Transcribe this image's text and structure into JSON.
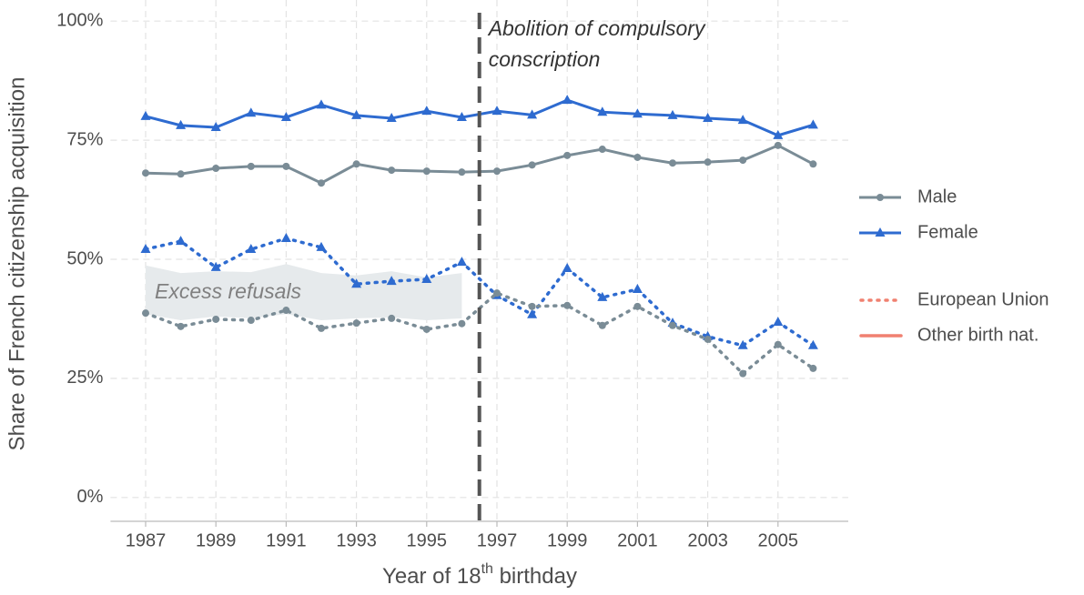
{
  "chart_data": {
    "type": "line",
    "xlabel": {
      "before": "Year of 18",
      "sup": "th",
      "after": " birthday"
    },
    "ylabel": "Share of French citizenship acquisition",
    "x": [
      1987,
      1988,
      1989,
      1990,
      1991,
      1992,
      1993,
      1994,
      1995,
      1996,
      1997,
      1998,
      1999,
      2000,
      2001,
      2002,
      2003,
      2004,
      2005,
      2006
    ],
    "xlim": [
      1986,
      2007
    ],
    "xticks": [
      1987,
      1989,
      1991,
      1993,
      1995,
      1997,
      1999,
      2001,
      2003,
      2005
    ],
    "ylim": [
      -5,
      105
    ],
    "yticks": [
      {
        "value": 0,
        "label": "0%"
      },
      {
        "value": 25,
        "label": "25%"
      },
      {
        "value": 50,
        "label": "50%"
      },
      {
        "value": 75,
        "label": "75%"
      },
      {
        "value": 100,
        "label": "100%"
      }
    ],
    "grid": true,
    "series": [
      {
        "color": "#2e6bd0",
        "linestyle": "solid",
        "marker": "triangle",
        "values": [
          80.0,
          78.1,
          77.7,
          80.7,
          79.8,
          82.4,
          80.2,
          79.6,
          81.1,
          79.8,
          81.1,
          80.3,
          83.4,
          80.9,
          80.5,
          80.2,
          79.6,
          79.2,
          76.0,
          78.2
        ]
      },
      {
        "color": "#7a8c96",
        "linestyle": "solid",
        "marker": "circle",
        "values": [
          68.1,
          67.9,
          69.1,
          69.5,
          69.5,
          66.0,
          70.0,
          68.7,
          68.5,
          68.3,
          68.5,
          69.8,
          71.8,
          73.1,
          71.4,
          70.2,
          70.4,
          70.8,
          73.9,
          70.0
        ]
      },
      {
        "color": "#2e6bd0",
        "linestyle": "dotted",
        "marker": "triangle",
        "values": [
          52.1,
          53.8,
          48.3,
          52.1,
          54.4,
          52.5,
          44.8,
          45.4,
          45.8,
          49.4,
          42.4,
          38.4,
          48.1,
          42.0,
          43.7,
          36.6,
          33.8,
          31.9,
          36.8,
          31.9
        ]
      },
      {
        "color": "#7a8c96",
        "linestyle": "dotted",
        "marker": "circle",
        "values": [
          38.7,
          35.9,
          37.4,
          37.2,
          39.3,
          35.5,
          36.6,
          37.6,
          35.3,
          36.5,
          42.9,
          40.1,
          40.3,
          36.1,
          40.1,
          36.1,
          33.2,
          26.0,
          32.1,
          27.1
        ]
      }
    ],
    "ribbon": {
      "label": "Excess refusals",
      "color": "#e6eaec",
      "x": [
        1987,
        1988,
        1989,
        1990,
        1991,
        1992,
        1993,
        1994,
        1995,
        1996
      ],
      "upper": [
        48.7,
        47.1,
        47.5,
        47.3,
        49.0,
        47.1,
        46.6,
        47.5,
        46.2,
        47.1
      ],
      "lower": [
        38.5,
        37.2,
        38.0,
        37.6,
        38.5,
        37.2,
        37.6,
        37.8,
        37.2,
        37.6
      ]
    },
    "vline": {
      "x": 1996.5,
      "color": "#555555",
      "label": [
        "Abolition of compulsory",
        "conscription"
      ]
    },
    "legend": {
      "color": [
        {
          "name": "Male",
          "color": "#7a8c96",
          "marker": "circle"
        },
        {
          "name": "Female",
          "color": "#2e6bd0",
          "marker": "triangle"
        }
      ],
      "linetype": [
        {
          "name": "European Union",
          "color": "#f08070",
          "linestyle": "dotted"
        },
        {
          "name": "Other birth nat.",
          "color": "#f08070",
          "linestyle": "solid"
        }
      ]
    }
  }
}
